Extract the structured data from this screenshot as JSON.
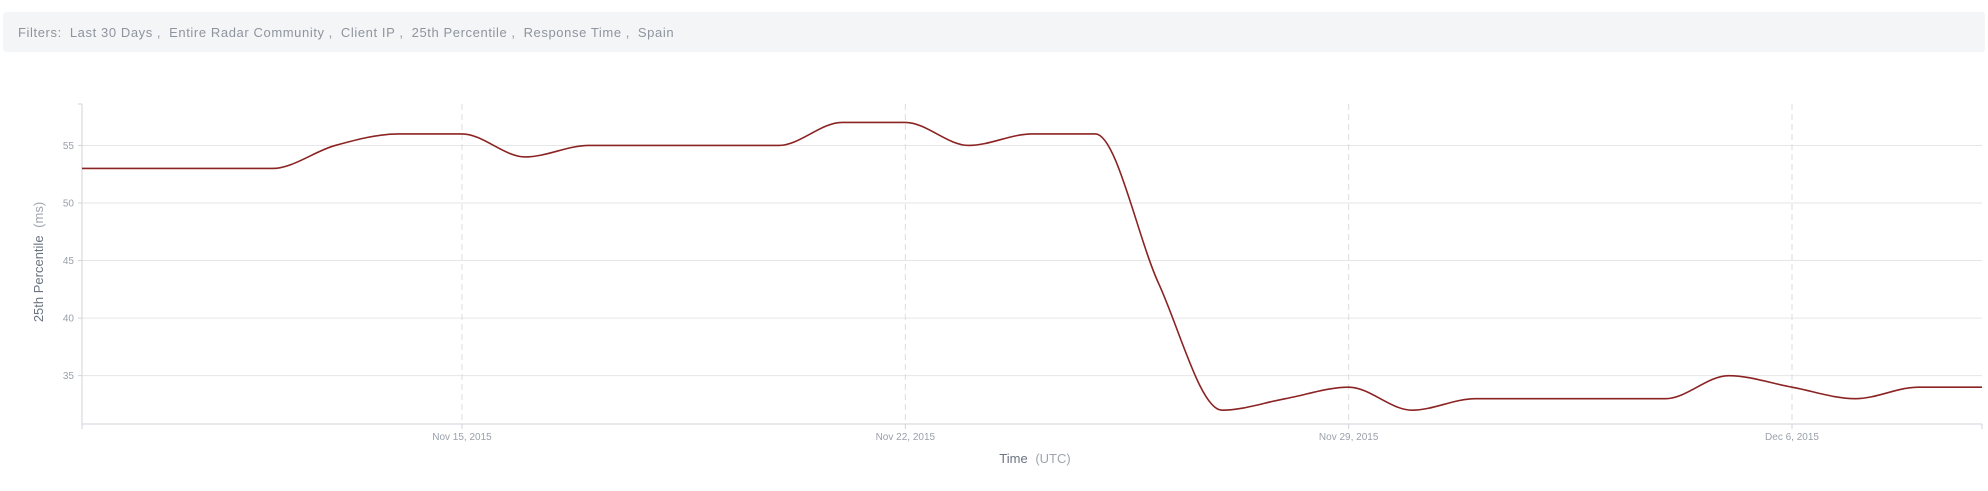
{
  "filters": {
    "label": "Filters:",
    "items": [
      "Last 30 Days",
      "Entire Radar Community",
      "Client IP",
      "25th Percentile",
      "Response Time",
      "Spain"
    ]
  },
  "colors": {
    "line": "#8b2323",
    "grid": "#e6e6e6",
    "vgrid": "#dddddd",
    "axis": "#cfd3d8"
  },
  "chart_data": {
    "type": "line",
    "ylabel": "25th Percentile",
    "ylabel_unit": "(ms)",
    "xlabel": "Time",
    "xlabel_unit": "(UTC)",
    "ylim": [
      30.8,
      58.6
    ],
    "yticks": [
      35,
      40,
      45,
      50,
      55
    ],
    "xlim": [
      "2015-11-09",
      "2015-12-09"
    ],
    "xticks": [
      {
        "date": "2015-11-15",
        "label": "Nov 15, 2015"
      },
      {
        "date": "2015-11-22",
        "label": "Nov 22, 2015"
      },
      {
        "date": "2015-11-29",
        "label": "Nov 29, 2015"
      },
      {
        "date": "2015-12-06",
        "label": "Dec 6, 2015"
      }
    ],
    "grid": true,
    "series": [
      {
        "points": [
          [
            "2015-11-09",
            53
          ],
          [
            "2015-11-10",
            53
          ],
          [
            "2015-11-11",
            53
          ],
          [
            "2015-11-12",
            53
          ],
          [
            "2015-11-13",
            55
          ],
          [
            "2015-11-14",
            56
          ],
          [
            "2015-11-15",
            56
          ],
          [
            "2015-11-16",
            54
          ],
          [
            "2015-11-17",
            55
          ],
          [
            "2015-11-18",
            55
          ],
          [
            "2015-11-19",
            55
          ],
          [
            "2015-11-20",
            55
          ],
          [
            "2015-11-21",
            57
          ],
          [
            "2015-11-22",
            57
          ],
          [
            "2015-11-23",
            55
          ],
          [
            "2015-11-24",
            56
          ],
          [
            "2015-11-25",
            56
          ],
          [
            "2015-11-26",
            43
          ],
          [
            "2015-11-27",
            32
          ],
          [
            "2015-11-28",
            33
          ],
          [
            "2015-11-29",
            34
          ],
          [
            "2015-11-30",
            32
          ],
          [
            "2015-12-01",
            33
          ],
          [
            "2015-12-02",
            33
          ],
          [
            "2015-12-03",
            33
          ],
          [
            "2015-12-04",
            33
          ],
          [
            "2015-12-05",
            35
          ],
          [
            "2015-12-06",
            34
          ],
          [
            "2015-12-07",
            33
          ],
          [
            "2015-12-08",
            34
          ],
          [
            "2015-12-09",
            34
          ]
        ]
      }
    ]
  }
}
